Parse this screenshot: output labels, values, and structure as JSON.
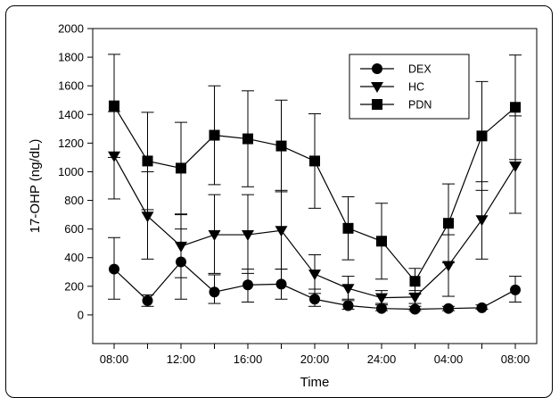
{
  "chart_data": {
    "type": "line",
    "title": "",
    "xlabel": "Time",
    "ylabel": "17-OHP (ng/dL)",
    "categories": [
      "08:00",
      "10:00",
      "12:00",
      "14:00",
      "16:00",
      "18:00",
      "20:00",
      "22:00",
      "24:00",
      "02:00",
      "04:00",
      "06:00",
      "08:00"
    ],
    "xtick_labels": [
      "08:00",
      "12:00",
      "16:00",
      "20:00",
      "24:00",
      "04:00",
      "08:00"
    ],
    "ylim": [
      -200,
      2000
    ],
    "yticks": [
      0,
      200,
      400,
      600,
      800,
      1000,
      1200,
      1400,
      1600,
      1800,
      2000
    ],
    "grid": false,
    "legend_position": "top-right",
    "series": [
      {
        "name": "DEX",
        "marker": "circle",
        "values": [
          320,
          100,
          370,
          160,
          210,
          215,
          110,
          65,
          45,
          40,
          45,
          50,
          175
        ],
        "upper": [
          540,
          140,
          600,
          280,
          320,
          320,
          180,
          110,
          70,
          60,
          60,
          70,
          270
        ],
        "lower": [
          110,
          60,
          110,
          80,
          90,
          110,
          60,
          40,
          30,
          30,
          30,
          40,
          90
        ]
      },
      {
        "name": "HC",
        "marker": "triangle-down",
        "values": [
          1110,
          690,
          480,
          560,
          560,
          590,
          285,
          185,
          120,
          125,
          345,
          665,
          1040
        ],
        "upper": [
          1420,
          1000,
          700,
          840,
          840,
          870,
          420,
          270,
          170,
          170,
          560,
          930,
          1390
        ],
        "lower": [
          810,
          390,
          260,
          290,
          290,
          320,
          150,
          100,
          80,
          80,
          130,
          390,
          710
        ]
      },
      {
        "name": "PDN",
        "marker": "square",
        "values": [
          1460,
          1075,
          1025,
          1255,
          1230,
          1180,
          1075,
          605,
          515,
          235,
          640,
          1250,
          1450
        ],
        "upper": [
          1820,
          1415,
          1345,
          1600,
          1565,
          1500,
          1405,
          825,
          780,
          325,
          915,
          1630,
          1815
        ],
        "lower": [
          1100,
          735,
          705,
          910,
          895,
          860,
          745,
          385,
          250,
          145,
          365,
          870,
          1085
        ]
      }
    ],
    "style": {
      "line_color": "#000000",
      "marker_color": "#000000",
      "background": "#ffffff"
    }
  }
}
